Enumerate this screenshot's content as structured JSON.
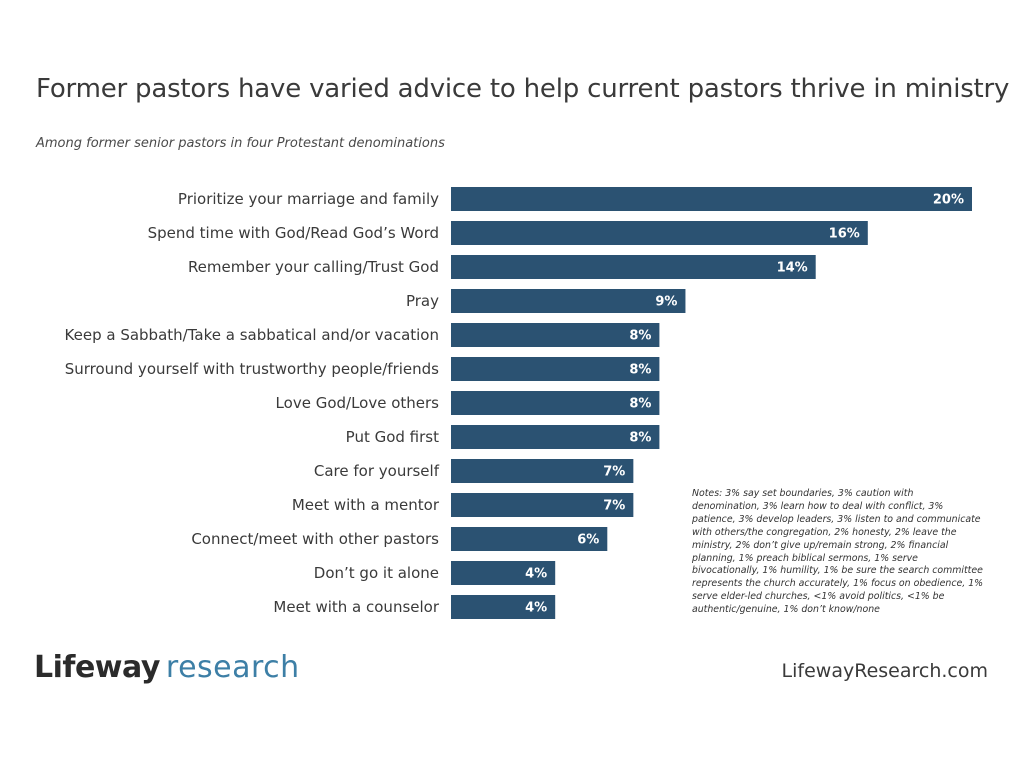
{
  "title": "Former pastors have varied advice to help current pastors thrive in ministry",
  "subtitle": "Among former senior pastors in four Protestant denominations",
  "notes": "Notes: 3% say set boundaries, 3% caution with denomination, 3% learn how to deal with conflict, 3% patience, 3% develop leaders, 3% listen to and communicate with others/the congregation, 2% honesty, 2% leave the ministry, 2% don’t give up/remain strong, 2% financial planning, 1% preach biblical sermons, 1% serve bivocationally, 1% humility, 1% be sure the search committee represents the church accurately, 1% focus on obedience, 1% serve elder-led churches, <1% avoid politics, <1% be authentic/genuine, 1% don’t know/none",
  "logo": {
    "brand": "Lifeway",
    "suffix": "research"
  },
  "site_url": "LifewayResearch.com",
  "colors": {
    "bar": "#2b5272",
    "logo_accent": "#3d7fa6"
  },
  "chart_data": {
    "type": "bar",
    "orientation": "horizontal",
    "title": "Former pastors have varied advice to help current pastors thrive in ministry",
    "subtitle": "Among former senior pastors in four Protestant denominations",
    "categories": [
      "Prioritize your marriage and family",
      "Spend time with God/Read God’s Word",
      "Remember your calling/Trust God",
      "Pray",
      "Keep a Sabbath/Take a sabbatical and/or vacation",
      "Surround yourself with trustworthy people/friends",
      "Love God/Love others",
      "Put God first",
      "Care for yourself",
      "Meet with a mentor",
      "Connect/meet with other pastors",
      "Don’t go it alone",
      "Meet with a counselor"
    ],
    "values": [
      20,
      16,
      14,
      9,
      8,
      8,
      8,
      8,
      7,
      7,
      6,
      4,
      4
    ],
    "value_labels": [
      "20%",
      "16%",
      "14%",
      "9%",
      "8%",
      "8%",
      "8%",
      "8%",
      "7%",
      "7%",
      "6%",
      "4%",
      "4%"
    ],
    "unit": "%",
    "xlim": [
      0,
      20
    ],
    "grid": false,
    "legend": "none"
  }
}
